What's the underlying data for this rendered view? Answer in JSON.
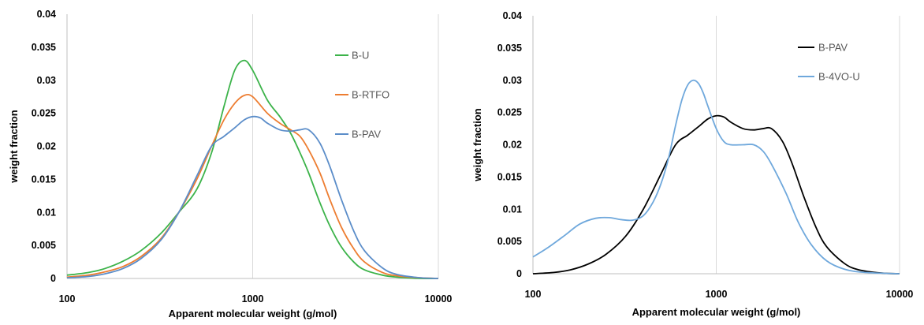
{
  "chart_data": [
    {
      "type": "line",
      "x_scale": "log",
      "xlim": [
        100,
        10000
      ],
      "ylim": [
        0,
        0.04
      ],
      "x_ticks": [
        "100",
        "1000",
        "10000"
      ],
      "y_ticks": [
        "0",
        "0.005",
        "0.01",
        "0.015",
        "0.02",
        "0.025",
        "0.03",
        "0.035",
        "0.04"
      ],
      "xlabel": "Apparent molecular weight (g/mol)",
      "ylabel": "weight fraction",
      "grid": "vertical",
      "legend": "inline-right",
      "series": [
        {
          "name": "B-U",
          "color": "#3CB34A",
          "x": [
            100,
            130,
            160,
            200,
            250,
            320,
            400,
            500,
            600,
            700,
            800,
            900,
            1000,
            1200,
            1400,
            1600,
            1800,
            2000,
            2300,
            2600,
            3000,
            3500,
            4000,
            5000,
            6000,
            8000,
            10000
          ],
          "y": [
            0.0005,
            0.0009,
            0.0015,
            0.0026,
            0.0042,
            0.0068,
            0.01,
            0.0135,
            0.019,
            0.026,
            0.0315,
            0.033,
            0.0315,
            0.027,
            0.0245,
            0.022,
            0.019,
            0.016,
            0.0115,
            0.008,
            0.0048,
            0.0025,
            0.0013,
            0.0005,
            0.0002,
            0.0,
            0.0
          ]
        },
        {
          "name": "B-RTFO",
          "color": "#ED7D31",
          "x": [
            100,
            130,
            160,
            200,
            250,
            320,
            400,
            500,
            600,
            700,
            800,
            900,
            1000,
            1200,
            1400,
            1600,
            1800,
            2000,
            2300,
            2600,
            3000,
            3500,
            4000,
            5000,
            6000,
            8000,
            10000
          ],
          "y": [
            0.0002,
            0.0005,
            0.001,
            0.0018,
            0.0033,
            0.006,
            0.01,
            0.015,
            0.02,
            0.024,
            0.0265,
            0.0277,
            0.0275,
            0.025,
            0.0235,
            0.0225,
            0.0215,
            0.0195,
            0.016,
            0.012,
            0.0078,
            0.0045,
            0.0025,
            0.0009,
            0.0004,
            0.0001,
            0.0
          ]
        },
        {
          "name": "B-PAV",
          "color": "#5B8DC9",
          "x": [
            100,
            130,
            160,
            200,
            250,
            320,
            400,
            500,
            600,
            700,
            800,
            900,
            1000,
            1100,
            1200,
            1400,
            1600,
            1800,
            2000,
            2300,
            2600,
            3000,
            3500,
            4000,
            5000,
            6000,
            8000,
            10000
          ],
          "y": [
            0.0001,
            0.0003,
            0.0007,
            0.0015,
            0.003,
            0.0058,
            0.01,
            0.0155,
            0.02,
            0.0215,
            0.0228,
            0.024,
            0.0245,
            0.0243,
            0.0235,
            0.0225,
            0.0223,
            0.0225,
            0.0225,
            0.0205,
            0.017,
            0.012,
            0.0072,
            0.0042,
            0.0016,
            0.0006,
            0.0001,
            0.0
          ]
        }
      ]
    },
    {
      "type": "line",
      "x_scale": "log",
      "xlim": [
        100,
        10000
      ],
      "ylim": [
        0,
        0.04
      ],
      "x_ticks": [
        "100",
        "1000",
        "10000"
      ],
      "y_ticks": [
        "0",
        "0.005",
        "0.01",
        "0.015",
        "0.02",
        "0.025",
        "0.03",
        "0.035",
        "0.04"
      ],
      "xlabel": "Apparent molecular weight (g/mol)",
      "ylabel": "weight fraction",
      "grid": "vertical",
      "legend": "top-right",
      "series": [
        {
          "name": "B-PAV",
          "color": "#000000",
          "x": [
            100,
            130,
            160,
            200,
            250,
            320,
            400,
            500,
            600,
            700,
            800,
            900,
            1000,
            1100,
            1200,
            1400,
            1600,
            1800,
            2000,
            2300,
            2600,
            3000,
            3500,
            4000,
            5000,
            6000,
            8000,
            10000
          ],
          "y": [
            0.0,
            0.0002,
            0.0006,
            0.0015,
            0.003,
            0.0058,
            0.01,
            0.0155,
            0.02,
            0.0215,
            0.0228,
            0.024,
            0.0245,
            0.0243,
            0.0235,
            0.0225,
            0.0223,
            0.0225,
            0.0225,
            0.0205,
            0.017,
            0.012,
            0.0072,
            0.0042,
            0.0016,
            0.0006,
            0.0001,
            0.0
          ]
        },
        {
          "name": "B-4VO-U",
          "color": "#6FA8DC",
          "x": [
            100,
            120,
            150,
            180,
            220,
            260,
            300,
            350,
            400,
            450,
            500,
            550,
            600,
            650,
            700,
            750,
            800,
            850,
            900,
            1000,
            1100,
            1200,
            1400,
            1600,
            1800,
            2000,
            2400,
            2800,
            3300,
            4000,
            5000,
            6500,
            10000
          ],
          "y": [
            0.0026,
            0.004,
            0.006,
            0.0077,
            0.0086,
            0.0087,
            0.0084,
            0.0083,
            0.009,
            0.011,
            0.014,
            0.018,
            0.023,
            0.027,
            0.0293,
            0.03,
            0.0295,
            0.028,
            0.026,
            0.0225,
            0.0205,
            0.02,
            0.02,
            0.02,
            0.019,
            0.017,
            0.0125,
            0.008,
            0.0045,
            0.002,
            0.0007,
            0.0002,
            0.0
          ]
        }
      ]
    }
  ]
}
